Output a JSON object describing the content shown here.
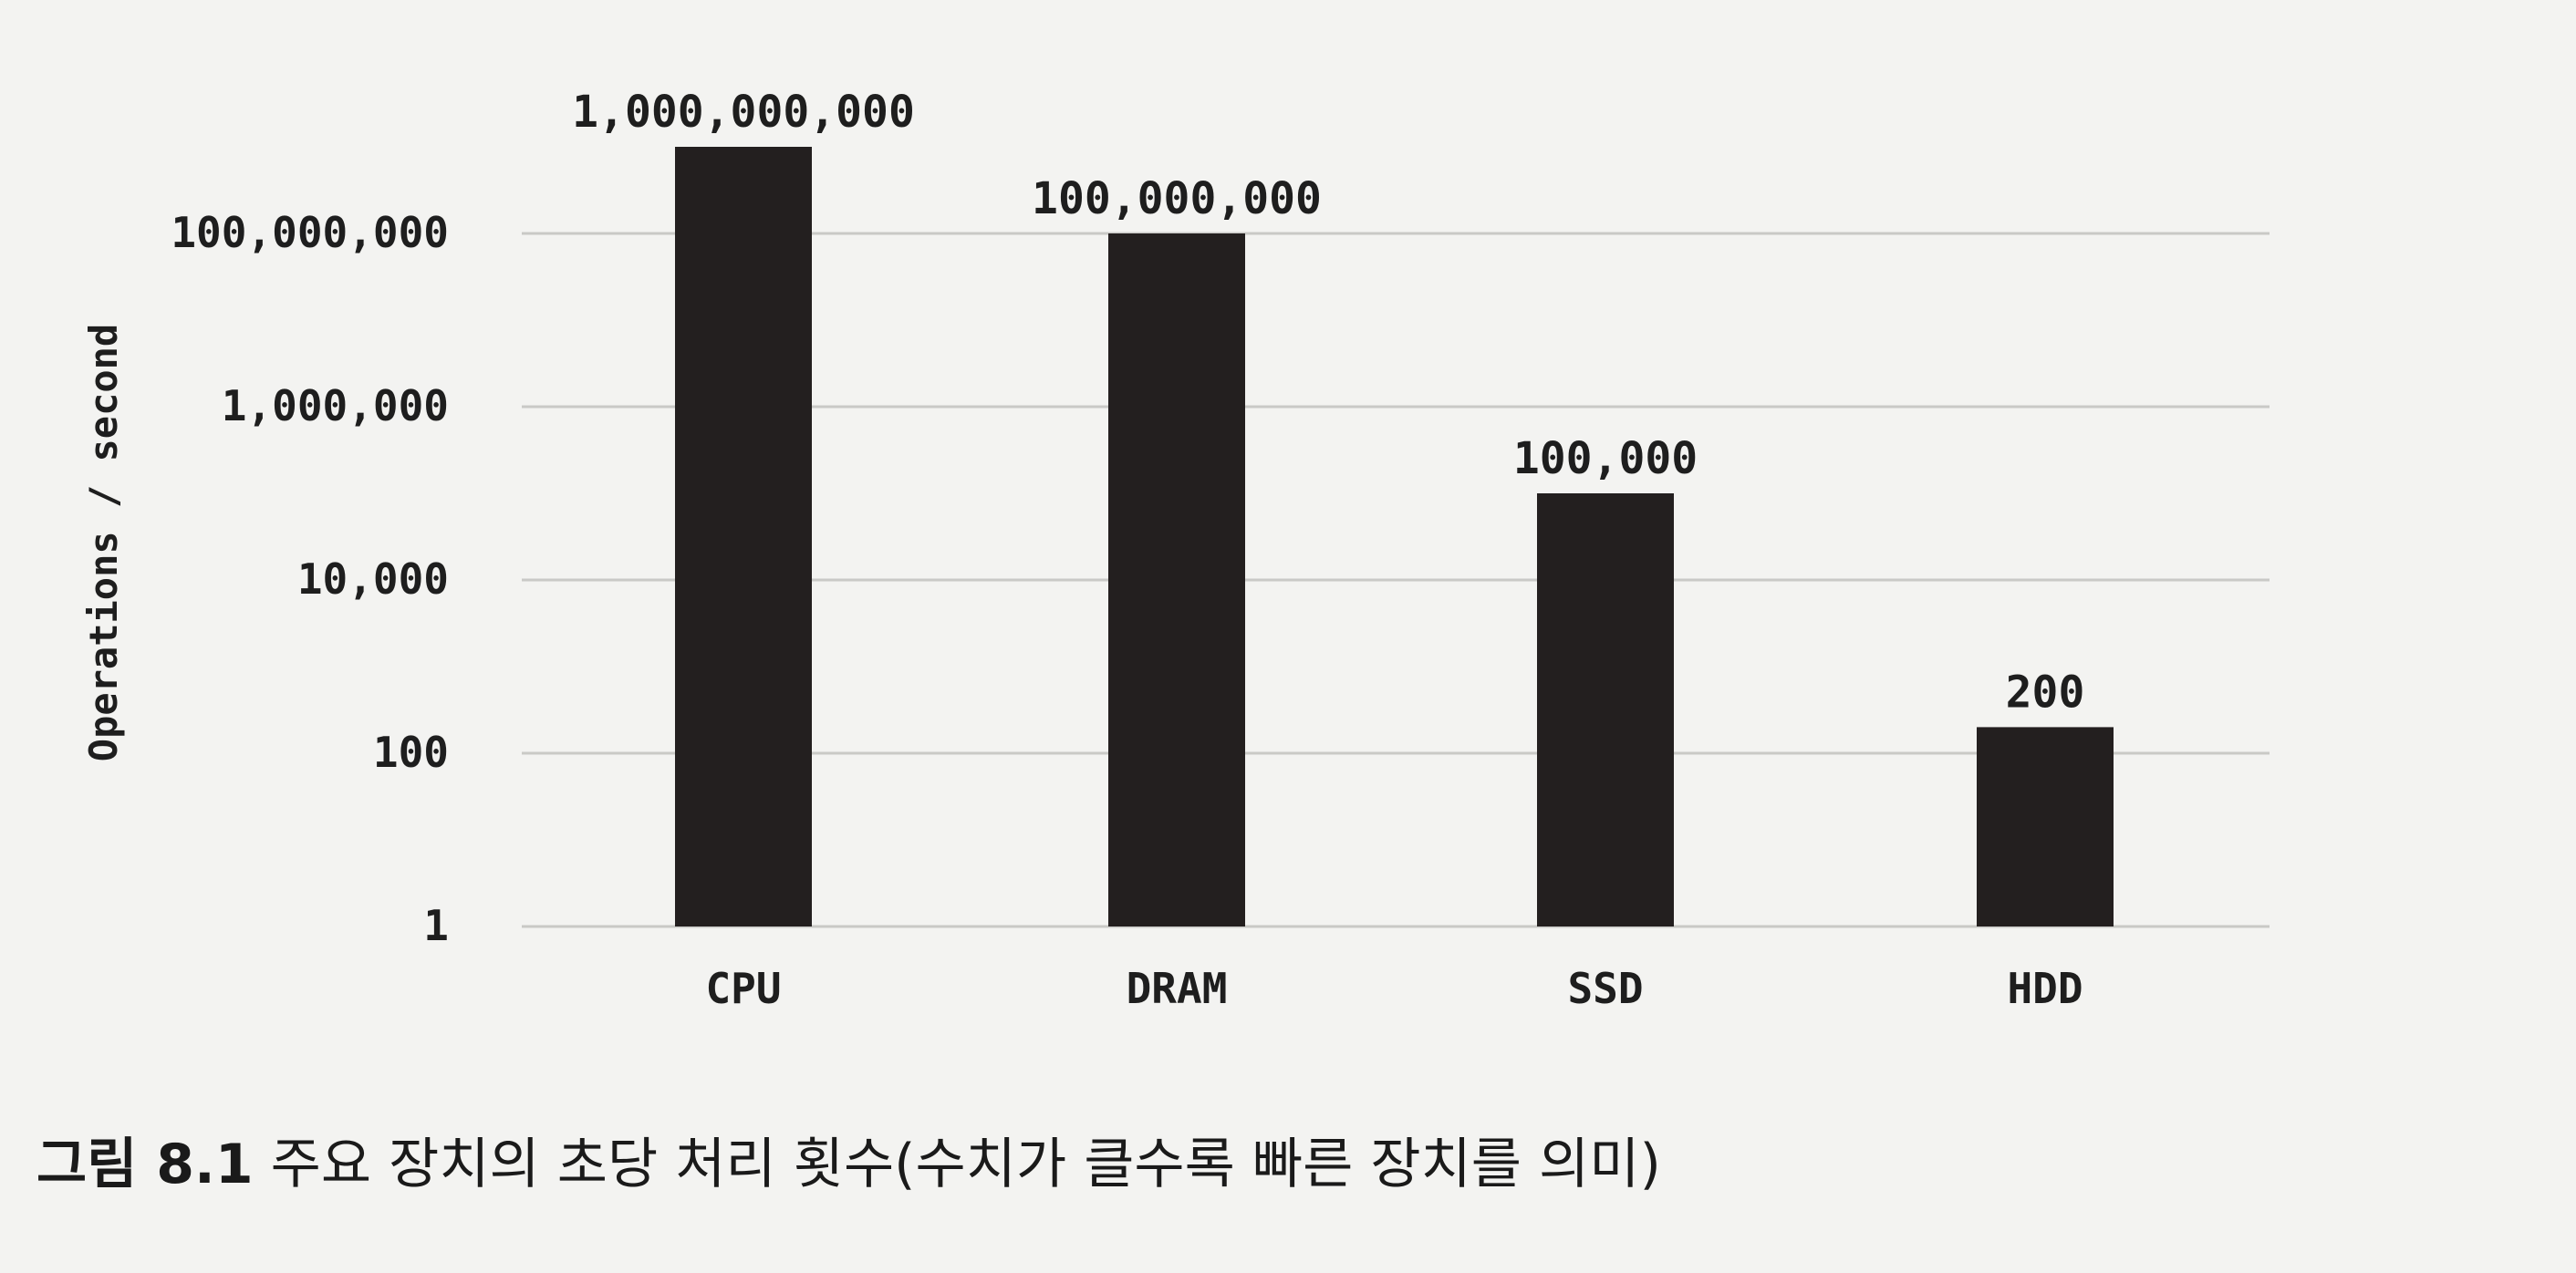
{
  "chart_data": {
    "type": "bar",
    "categories": [
      "CPU",
      "DRAM",
      "SSD",
      "HDD"
    ],
    "values": [
      1000000000,
      100000000,
      100000,
      200
    ],
    "value_labels": [
      "1,000,000,000",
      "100,000,000",
      "100,000",
      "200"
    ],
    "ylabel": "Operations / second",
    "y_scale": "log",
    "ylim": [
      1,
      100000000
    ],
    "y_ticks": [
      1,
      100,
      10000,
      1000000,
      100000000
    ],
    "y_tick_labels": [
      "1",
      "100",
      "10,000",
      "1,000,000",
      "100,000,000"
    ],
    "grid": true,
    "bar_color": "#231f1f"
  },
  "caption": {
    "figure_number": "그림 8.1",
    "text": "주요 장치의 초당 처리 횟수(수치가 클수록 빠른 장치를 의미)"
  }
}
